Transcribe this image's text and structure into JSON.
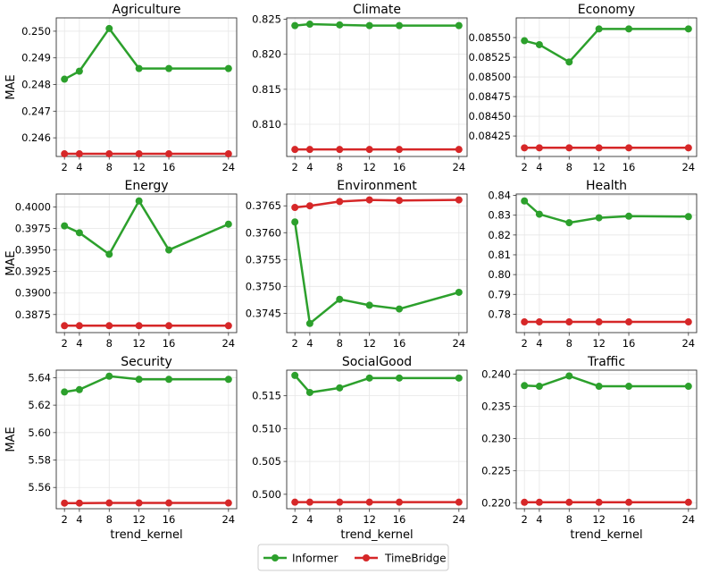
{
  "figure": {
    "x_axis_label": "trend_kernel",
    "y_axis_label": "MAE"
  },
  "legend": [
    {
      "label": "Informer",
      "color": "#2ca02c"
    },
    {
      "label": "TimeBridge",
      "color": "#d62728"
    }
  ],
  "chart_data": [
    {
      "type": "line",
      "title": "Agriculture",
      "x": [
        2,
        4,
        8,
        12,
        16,
        24
      ],
      "ylim": [
        0.2453,
        0.2505
      ],
      "yticks": [
        0.246,
        0.247,
        0.248,
        0.249,
        0.25
      ],
      "ytick_labels": [
        "0.246",
        "0.247",
        "0.248",
        "0.249",
        "0.250"
      ],
      "series": [
        {
          "name": "Informer",
          "color": "#2ca02c",
          "values": [
            0.2482,
            0.2485,
            0.2501,
            0.2486,
            0.2486,
            0.2486
          ]
        },
        {
          "name": "TimeBridge",
          "color": "#d62728",
          "values": [
            0.2454,
            0.2454,
            0.2454,
            0.2454,
            0.2454,
            0.2454
          ]
        }
      ]
    },
    {
      "type": "line",
      "title": "Climate",
      "x": [
        2,
        4,
        8,
        12,
        16,
        24
      ],
      "ylim": [
        0.8054,
        0.8252
      ],
      "yticks": [
        0.81,
        0.815,
        0.82,
        0.825
      ],
      "ytick_labels": [
        "0.810",
        "0.815",
        "0.820",
        "0.825"
      ],
      "series": [
        {
          "name": "Informer",
          "color": "#2ca02c",
          "values": [
            0.8241,
            0.8243,
            0.8242,
            0.8241,
            0.8241,
            0.8241
          ]
        },
        {
          "name": "TimeBridge",
          "color": "#d62728",
          "values": [
            0.8064,
            0.8064,
            0.8064,
            0.8064,
            0.8064,
            0.8064
          ]
        }
      ]
    },
    {
      "type": "line",
      "title": "Economy",
      "x": [
        2,
        4,
        8,
        12,
        16,
        24
      ],
      "ylim": [
        0.08399,
        0.08575
      ],
      "yticks": [
        0.08425,
        0.0845,
        0.08475,
        0.085,
        0.08525,
        0.0855
      ],
      "ytick_labels": [
        "0.08425",
        "0.08450",
        "0.08475",
        "0.08500",
        "0.08525",
        "0.08550"
      ],
      "series": [
        {
          "name": "Informer",
          "color": "#2ca02c",
          "values": [
            0.08546,
            0.08541,
            0.08519,
            0.08561,
            0.08561,
            0.08561
          ]
        },
        {
          "name": "TimeBridge",
          "color": "#d62728",
          "values": [
            0.0841,
            0.0841,
            0.0841,
            0.0841,
            0.0841,
            0.0841
          ]
        }
      ]
    },
    {
      "type": "line",
      "title": "Energy",
      "x": [
        2,
        4,
        8,
        12,
        16,
        24
      ],
      "ylim": [
        0.3854,
        0.4015
      ],
      "yticks": [
        0.3875,
        0.39,
        0.3925,
        0.395,
        0.3975,
        0.4
      ],
      "ytick_labels": [
        "0.3875",
        "0.3900",
        "0.3925",
        "0.3950",
        "0.3975",
        "0.4000"
      ],
      "series": [
        {
          "name": "Informer",
          "color": "#2ca02c",
          "values": [
            0.3978,
            0.397,
            0.3945,
            0.4007,
            0.395,
            0.398
          ]
        },
        {
          "name": "TimeBridge",
          "color": "#d62728",
          "values": [
            0.3862,
            0.3862,
            0.3862,
            0.3862,
            0.3862,
            0.3862
          ]
        }
      ]
    },
    {
      "type": "line",
      "title": "Environment",
      "x": [
        2,
        4,
        8,
        12,
        16,
        24
      ],
      "ylim": [
        0.37414,
        0.37672
      ],
      "yticks": [
        0.3745,
        0.375,
        0.3755,
        0.376,
        0.3765
      ],
      "ytick_labels": [
        "0.3745",
        "0.3750",
        "0.3755",
        "0.3760",
        "0.3765"
      ],
      "series": [
        {
          "name": "Informer",
          "color": "#2ca02c",
          "values": [
            0.3762,
            0.37431,
            0.37476,
            0.37465,
            0.37458,
            0.37489
          ]
        },
        {
          "name": "TimeBridge",
          "color": "#d62728",
          "values": [
            0.37647,
            0.3765,
            0.37658,
            0.37661,
            0.3766,
            0.37661
          ]
        }
      ]
    },
    {
      "type": "line",
      "title": "Health",
      "x": [
        2,
        4,
        8,
        12,
        16,
        24
      ],
      "ylim": [
        0.7707,
        0.8407
      ],
      "yticks": [
        0.78,
        0.79,
        0.8,
        0.81,
        0.82,
        0.83,
        0.84
      ],
      "ytick_labels": [
        "0.78",
        "0.79",
        "0.80",
        "0.81",
        "0.82",
        "0.83",
        "0.84"
      ],
      "series": [
        {
          "name": "Informer",
          "color": "#2ca02c",
          "values": [
            0.8372,
            0.8305,
            0.8262,
            0.8287,
            0.8295,
            0.8293
          ]
        },
        {
          "name": "TimeBridge",
          "color": "#d62728",
          "values": [
            0.7761,
            0.7761,
            0.7761,
            0.7761,
            0.7761,
            0.7761
          ]
        }
      ]
    },
    {
      "type": "line",
      "title": "Security",
      "x": [
        2,
        4,
        8,
        12,
        16,
        24
      ],
      "ylim": [
        5.5445,
        5.6455
      ],
      "yticks": [
        5.56,
        5.58,
        5.6,
        5.62,
        5.64
      ],
      "ytick_labels": [
        "5.56",
        "5.58",
        "5.60",
        "5.62",
        "5.64"
      ],
      "series": [
        {
          "name": "Informer",
          "color": "#2ca02c",
          "values": [
            5.6296,
            5.6313,
            5.6411,
            5.6388,
            5.6388,
            5.6388
          ]
        },
        {
          "name": "TimeBridge",
          "color": "#d62728",
          "values": [
            5.5486,
            5.5486,
            5.5487,
            5.5487,
            5.5487,
            5.5487
          ]
        }
      ]
    },
    {
      "type": "line",
      "title": "SocialGood",
      "x": [
        2,
        4,
        8,
        12,
        16,
        24
      ],
      "ylim": [
        0.4978,
        0.5189
      ],
      "yticks": [
        0.5,
        0.505,
        0.51,
        0.515
      ],
      "ytick_labels": [
        "0.500",
        "0.505",
        "0.510",
        "0.515"
      ],
      "series": [
        {
          "name": "Informer",
          "color": "#2ca02c",
          "values": [
            0.5181,
            0.5155,
            0.5162,
            0.5177,
            0.5177,
            0.5177
          ]
        },
        {
          "name": "TimeBridge",
          "color": "#d62728",
          "values": [
            0.4988,
            0.4988,
            0.4988,
            0.4988,
            0.4988,
            0.4988
          ]
        }
      ]
    },
    {
      "type": "line",
      "title": "Traffic",
      "x": [
        2,
        4,
        8,
        12,
        16,
        24
      ],
      "ylim": [
        0.2191,
        0.2406
      ],
      "yticks": [
        0.22,
        0.225,
        0.23,
        0.235,
        0.24
      ],
      "ytick_labels": [
        "0.220",
        "0.225",
        "0.230",
        "0.235",
        "0.240"
      ],
      "series": [
        {
          "name": "Informer",
          "color": "#2ca02c",
          "values": [
            0.2382,
            0.2381,
            0.2397,
            0.2381,
            0.2381,
            0.2381
          ]
        },
        {
          "name": "TimeBridge",
          "color": "#d62728",
          "values": [
            0.2201,
            0.2201,
            0.2201,
            0.2201,
            0.2201,
            0.2201
          ]
        }
      ]
    }
  ]
}
